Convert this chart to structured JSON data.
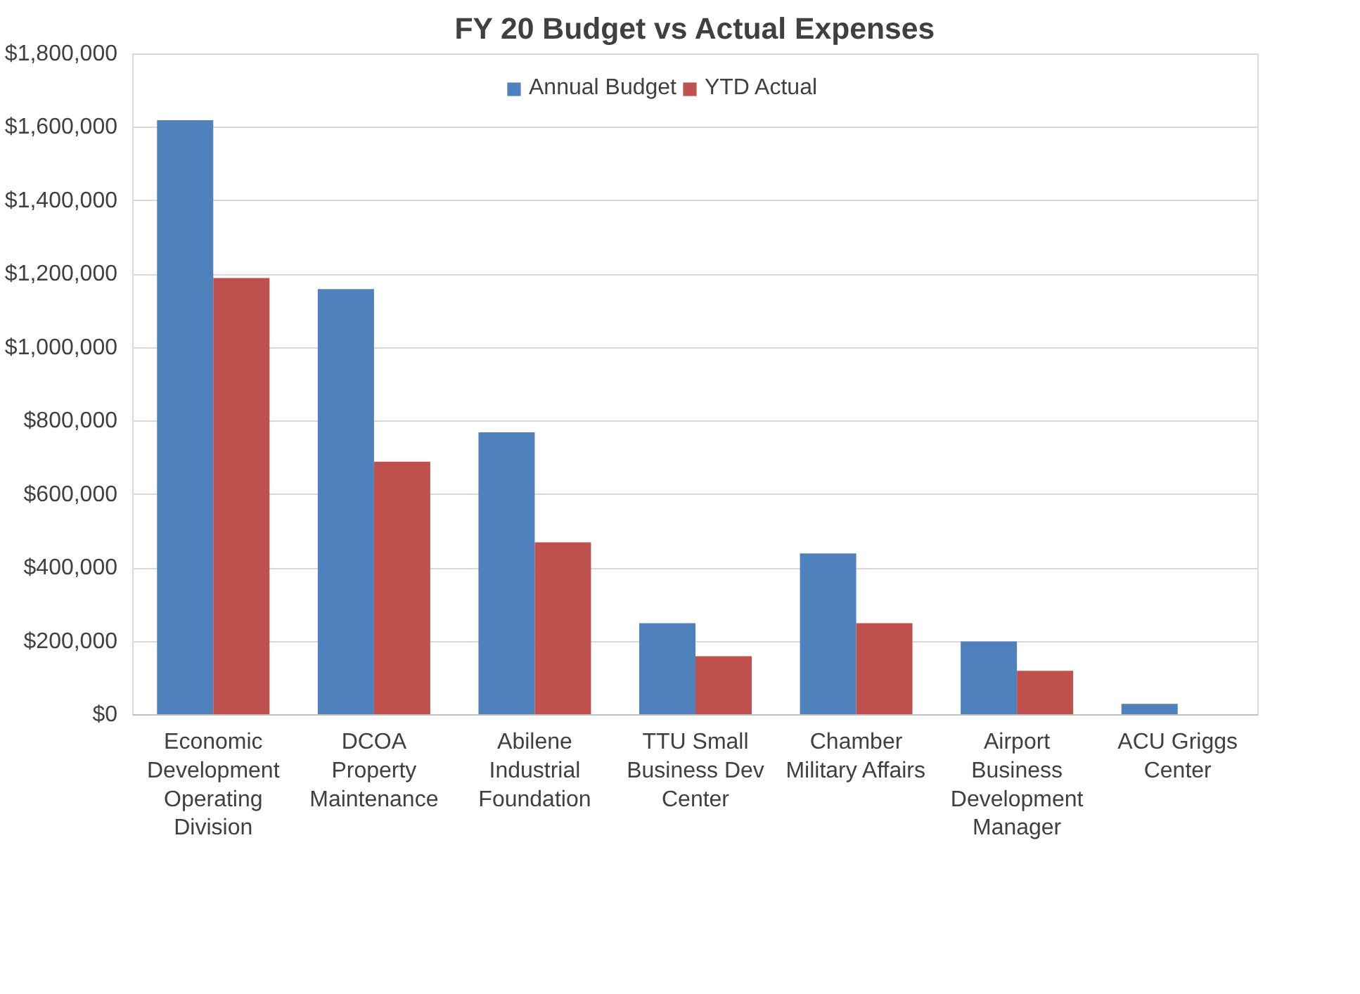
{
  "chart_data": {
    "type": "bar",
    "title": "FY 20 Budget vs Actual Expenses",
    "categories": [
      "Economic\nDevelopment\nOperating\nDivision",
      "DCOA\nProperty\nMaintenance",
      "Abilene\nIndustrial\nFoundation",
      "TTU Small\nBusiness Dev\nCenter",
      "Chamber\nMilitary Affairs",
      "Airport\nBusiness\nDevelopment\nManager",
      "ACU Griggs\nCenter"
    ],
    "series": [
      {
        "name": "Annual Budget",
        "color": "#4f81bd",
        "values": [
          1620000,
          1160000,
          770000,
          250000,
          440000,
          200000,
          30000
        ]
      },
      {
        "name": "YTD Actual",
        "color": "#c0504d",
        "values": [
          1190000,
          690000,
          470000,
          160000,
          250000,
          120000,
          0
        ]
      }
    ],
    "ylim": [
      0,
      1800000
    ],
    "yticks": [
      {
        "value": 0,
        "label": "$0"
      },
      {
        "value": 200000,
        "label": "$200,000"
      },
      {
        "value": 400000,
        "label": "$400,000"
      },
      {
        "value": 600000,
        "label": "$600,000"
      },
      {
        "value": 800000,
        "label": "$800,000"
      },
      {
        "value": 1000000,
        "label": "$1,000,000"
      },
      {
        "value": 1200000,
        "label": "$1,200,000"
      },
      {
        "value": 1400000,
        "label": "$1,400,000"
      },
      {
        "value": 1600000,
        "label": "$1,600,000"
      },
      {
        "value": 1800000,
        "label": "$1,800,000"
      }
    ],
    "grid": "y",
    "legend": "top"
  }
}
